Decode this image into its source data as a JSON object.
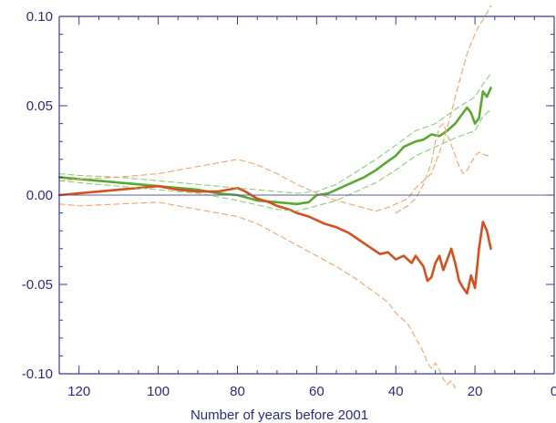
{
  "chart_data": {
    "type": "line",
    "title": "",
    "xlabel": "Number of years before 2001",
    "ylabel": "",
    "xlim": [
      125,
      0
    ],
    "ylim": [
      -0.1,
      0.1
    ],
    "xticks": [
      {
        "value": 120,
        "label": "120"
      },
      {
        "value": 100,
        "label": "100"
      },
      {
        "value": 80,
        "label": "80"
      },
      {
        "value": 60,
        "label": "60"
      },
      {
        "value": 40,
        "label": "40"
      },
      {
        "value": 20,
        "label": "20"
      },
      {
        "value": 0,
        "label": "0"
      }
    ],
    "yticks": [
      {
        "value": 0.1,
        "label": "0.10"
      },
      {
        "value": 0.05,
        "label": "0.05"
      },
      {
        "value": 0.0,
        "label": "0.00"
      },
      {
        "value": -0.05,
        "label": "-0.05"
      },
      {
        "value": -0.1,
        "label": "-0.10"
      }
    ],
    "reference_line": {
      "y": 0.0
    },
    "series": [
      {
        "color": "#5aa832",
        "style": "solid",
        "x": [
          125,
          120,
          115,
          110,
          105,
          100,
          95,
          90,
          85,
          80,
          75,
          70,
          65,
          62,
          60,
          57,
          55,
          52,
          50,
          48,
          45,
          42,
          40,
          38,
          35,
          33,
          31,
          29,
          27,
          25,
          23,
          22,
          21,
          20,
          19,
          18,
          17,
          16
        ],
        "y": [
          0.01,
          0.009,
          0.008,
          0.007,
          0.006,
          0.005,
          0.004,
          0.003,
          0.001,
          0.0,
          -0.003,
          -0.004,
          -0.005,
          -0.004,
          0.0,
          0.001,
          0.003,
          0.006,
          0.008,
          0.01,
          0.014,
          0.019,
          0.022,
          0.027,
          0.03,
          0.031,
          0.034,
          0.033,
          0.036,
          0.04,
          0.046,
          0.049,
          0.046,
          0.04,
          0.043,
          0.058,
          0.055,
          0.06
        ]
      },
      {
        "color": "#d4501e",
        "style": "solid",
        "x": [
          125,
          120,
          115,
          110,
          105,
          100,
          95,
          90,
          85,
          80,
          78,
          75,
          72,
          70,
          67,
          65,
          62,
          60,
          58,
          55,
          52,
          50,
          48,
          46,
          44,
          42,
          40,
          38,
          36,
          35,
          33,
          32,
          31,
          30,
          29,
          28,
          27,
          26,
          25,
          24,
          23,
          22,
          21,
          20,
          19,
          18,
          17,
          16
        ],
        "y": [
          0.0,
          0.001,
          0.002,
          0.003,
          0.004,
          0.005,
          0.003,
          0.002,
          0.002,
          0.004,
          0.002,
          -0.002,
          -0.004,
          -0.006,
          -0.008,
          -0.01,
          -0.012,
          -0.014,
          -0.016,
          -0.018,
          -0.021,
          -0.024,
          -0.027,
          -0.03,
          -0.033,
          -0.032,
          -0.036,
          -0.034,
          -0.038,
          -0.034,
          -0.04,
          -0.048,
          -0.046,
          -0.038,
          -0.034,
          -0.042,
          -0.036,
          -0.03,
          -0.038,
          -0.048,
          -0.052,
          -0.055,
          -0.045,
          -0.052,
          -0.03,
          -0.015,
          -0.02,
          -0.03
        ]
      },
      {
        "color": "#8dcc79",
        "style": "dashed",
        "x": [
          125,
          120,
          110,
          100,
          90,
          80,
          70,
          65,
          60,
          55,
          50,
          45,
          40,
          35,
          30,
          25,
          20,
          18,
          16
        ],
        "y": [
          0.012,
          0.011,
          0.01,
          0.008,
          0.006,
          0.004,
          0.002,
          0.001,
          0.002,
          0.006,
          0.013,
          0.02,
          0.028,
          0.036,
          0.04,
          0.048,
          0.055,
          0.062,
          0.068
        ]
      },
      {
        "color": "#8dcc79",
        "style": "dashed",
        "x": [
          125,
          120,
          110,
          100,
          90,
          80,
          70,
          65,
          60,
          55,
          50,
          45,
          40,
          35,
          30,
          25,
          20,
          18,
          16
        ],
        "y": [
          0.008,
          0.007,
          0.005,
          0.003,
          0.001,
          -0.003,
          -0.008,
          -0.009,
          -0.006,
          -0.003,
          0.002,
          0.007,
          0.014,
          0.022,
          0.027,
          0.032,
          0.036,
          0.044,
          0.048
        ]
      },
      {
        "color": "#f0a36c",
        "style": "dashed",
        "x": [
          125,
          120,
          110,
          100,
          95,
          90,
          85,
          80,
          75,
          70,
          65,
          60,
          55,
          50,
          45,
          42,
          40,
          37,
          35,
          33,
          31,
          30,
          29,
          28,
          27,
          26,
          25,
          24,
          23,
          22,
          21,
          20,
          19,
          18,
          17,
          16
        ],
        "y": [
          0.008,
          0.009,
          0.01,
          0.012,
          0.014,
          0.016,
          0.018,
          0.02,
          0.017,
          0.012,
          0.006,
          0.001,
          -0.003,
          -0.006,
          -0.009,
          -0.007,
          -0.005,
          -0.002,
          0.004,
          0.008,
          0.012,
          0.018,
          0.024,
          0.03,
          0.038,
          0.046,
          0.055,
          0.063,
          0.071,
          0.079,
          0.085,
          0.09,
          0.095,
          0.098,
          0.102,
          0.106
        ]
      },
      {
        "color": "#f0a36c",
        "style": "dashed",
        "x": [
          125,
          120,
          110,
          100,
          95,
          90,
          85,
          80,
          75,
          70,
          65,
          60,
          55,
          50,
          45,
          42,
          40,
          37,
          35,
          33,
          32,
          31,
          30,
          29,
          28,
          27,
          26,
          25
        ],
        "y": [
          -0.005,
          -0.006,
          -0.005,
          -0.004,
          -0.006,
          -0.008,
          -0.01,
          -0.012,
          -0.016,
          -0.022,
          -0.028,
          -0.034,
          -0.04,
          -0.047,
          -0.055,
          -0.06,
          -0.066,
          -0.072,
          -0.08,
          -0.088,
          -0.094,
          -0.097,
          -0.094,
          -0.098,
          -0.103,
          -0.106,
          -0.104,
          -0.108
        ]
      },
      {
        "color": "#f0a36c",
        "style": "dashed",
        "x": [
          40,
          37,
          35,
          33,
          31,
          30,
          29,
          28,
          27,
          26,
          25,
          24,
          23,
          22,
          21,
          20,
          19,
          18,
          17,
          16
        ],
        "y": [
          -0.01,
          -0.006,
          -0.002,
          0.006,
          0.018,
          0.03,
          0.038,
          0.04,
          0.034,
          0.028,
          0.022,
          0.016,
          0.012,
          0.014,
          0.018,
          0.022,
          0.024,
          0.023,
          0.022,
          0.023
        ]
      }
    ]
  }
}
